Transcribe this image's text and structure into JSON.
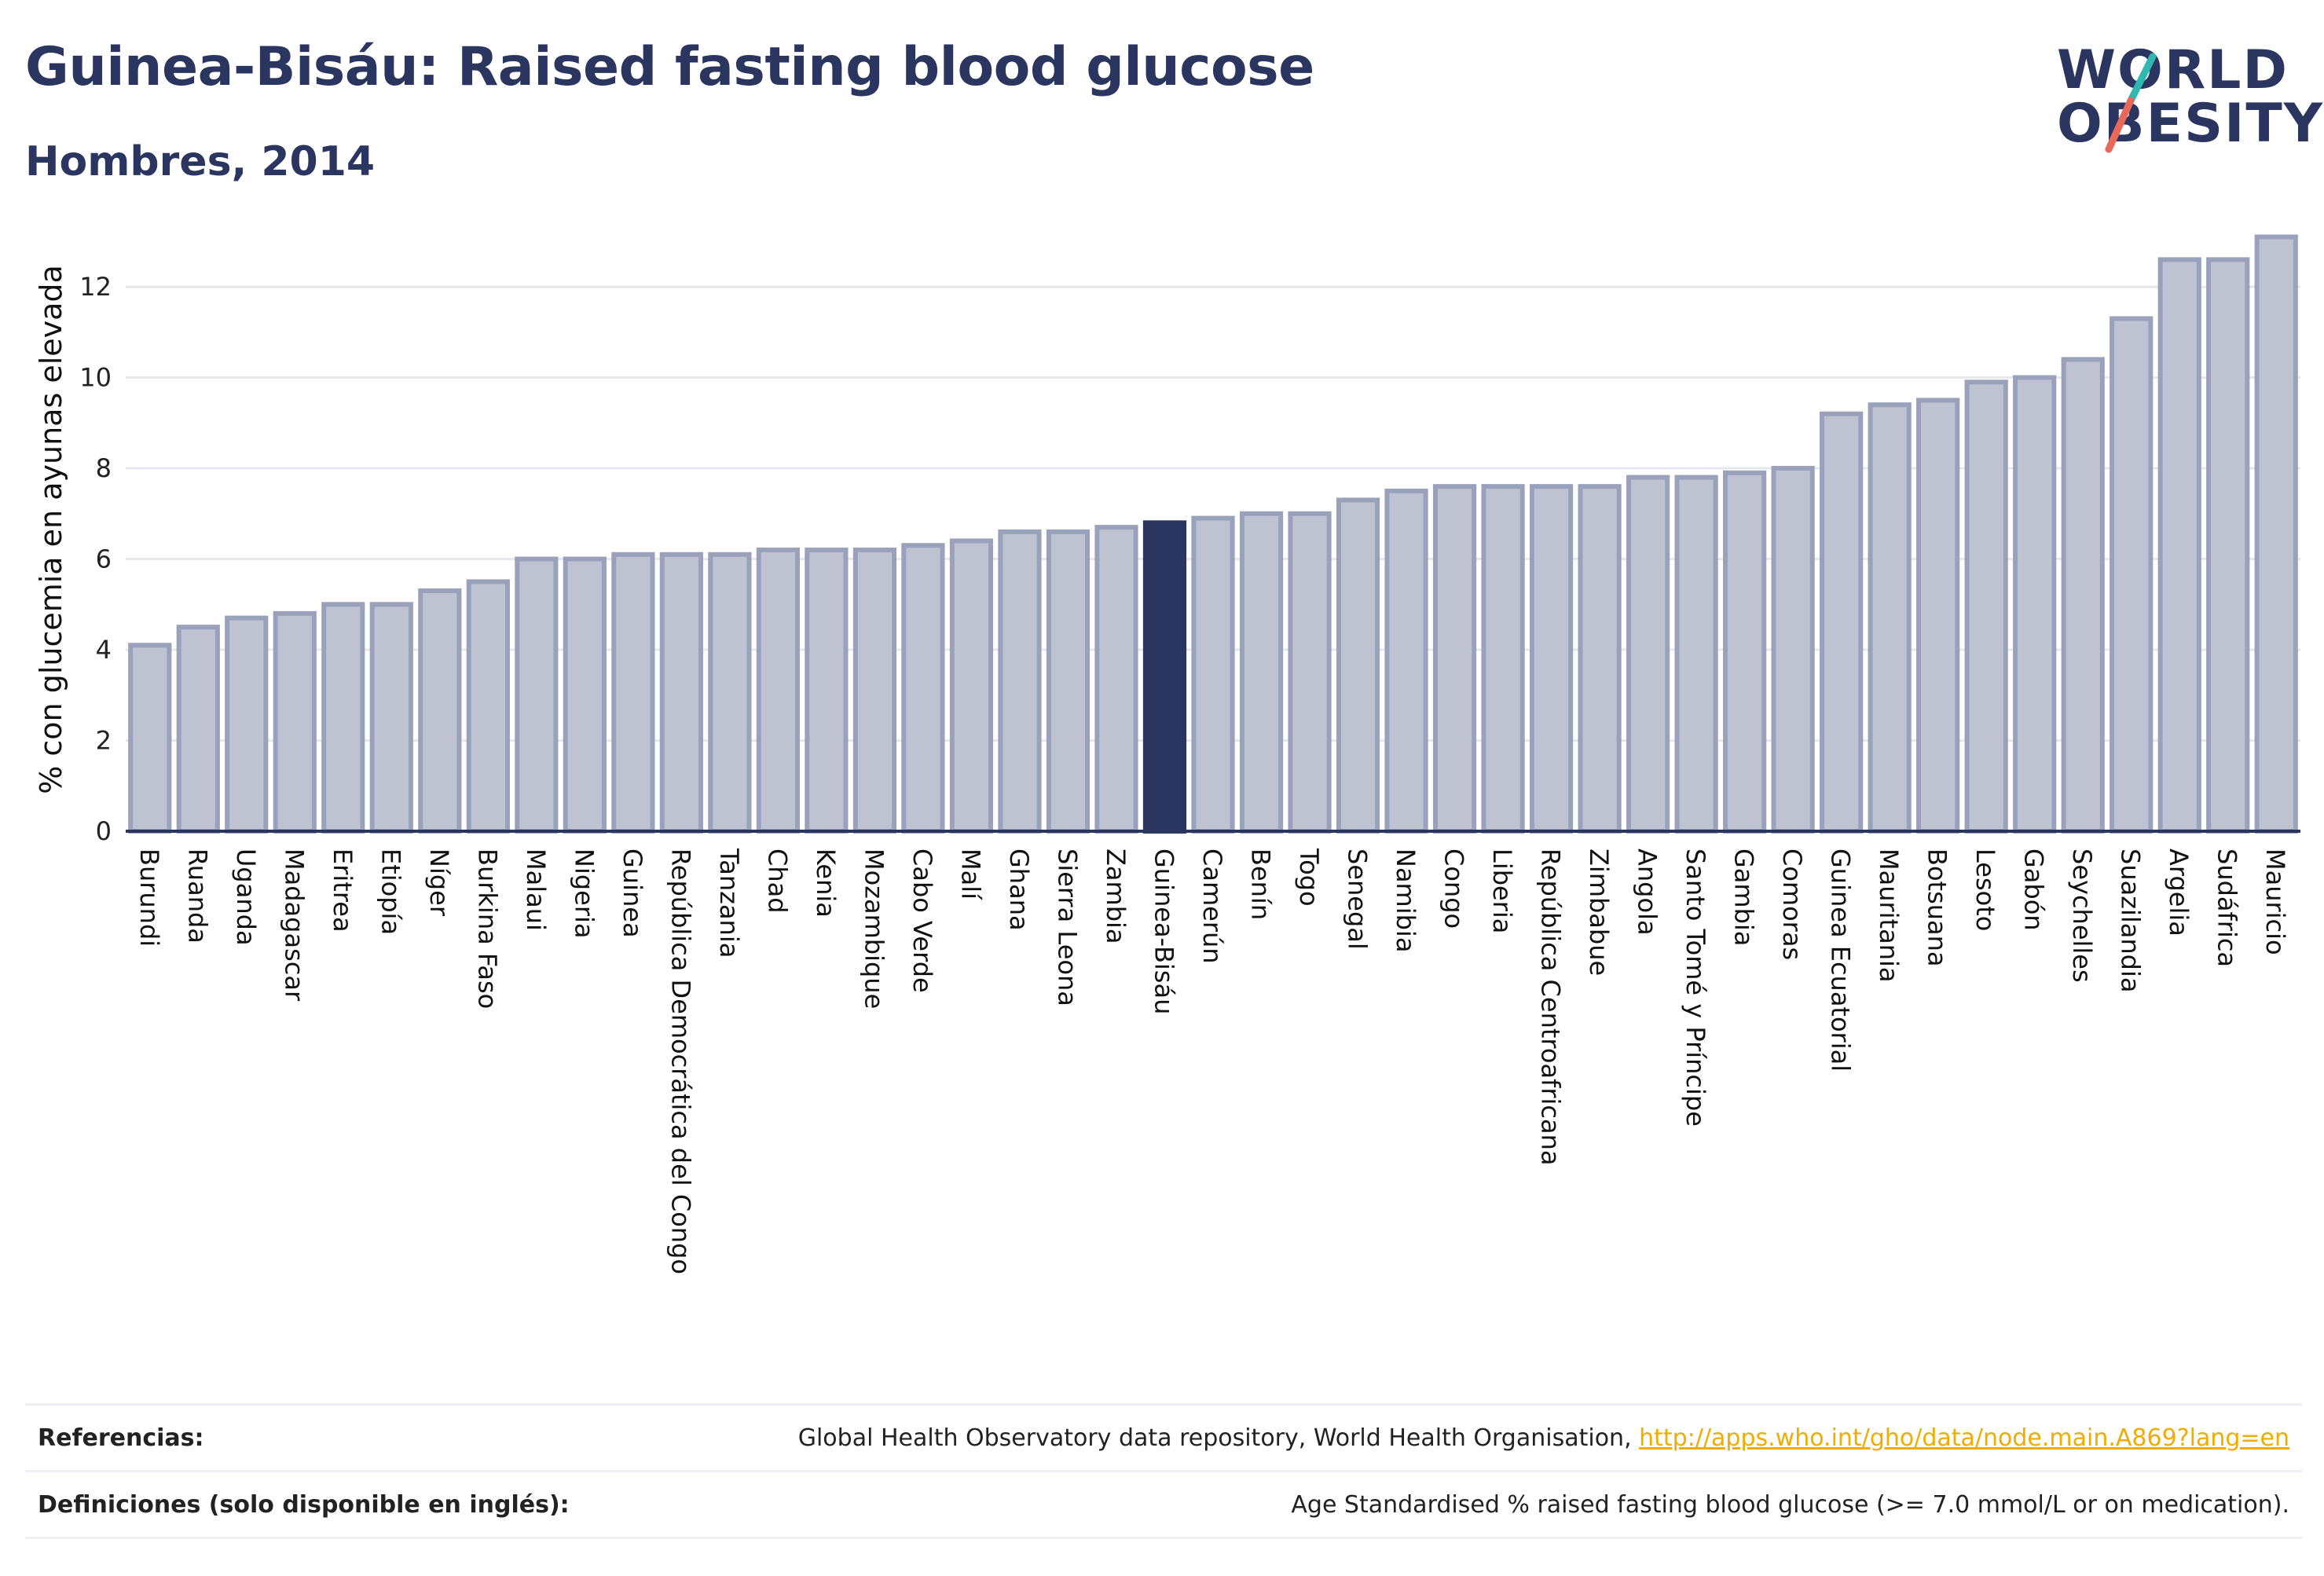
{
  "header": {
    "title": "Guinea-Bisáu: Raised fasting blood glucose",
    "subtitle": "Hombres, 2014"
  },
  "logo": {
    "line1": "WORLD",
    "line2": "OBESITY",
    "slash_color_top": "#2fb7b0",
    "slash_color_bottom": "#e8685a"
  },
  "colors": {
    "bar_fill": "#bfc3d1",
    "bar_stroke": "#9aa1bb",
    "highlight": "#2a3560",
    "axis": "#2a3560",
    "grid": "#e6e8ee",
    "text": "#2a3560"
  },
  "chart_data": {
    "type": "bar",
    "ylabel": "% con glucemia en ayunas elevada",
    "ylim": [
      0,
      13.3
    ],
    "yticks": [
      0,
      2,
      4,
      6,
      8,
      10,
      12
    ],
    "grid": true,
    "highlight_category": "Guinea-Bisáu",
    "categories": [
      "Burundi",
      "Ruanda",
      "Uganda",
      "Madagascar",
      "Eritrea",
      "Etiopía",
      "Níger",
      "Burkina Faso",
      "Malaui",
      "Nigeria",
      "Guinea",
      "República Democrática del Congo",
      "Tanzania",
      "Chad",
      "Kenia",
      "Mozambique",
      "Cabo Verde",
      "Malí",
      "Ghana",
      "Sierra Leona",
      "Zambia",
      "Guinea-Bisáu",
      "Camerún",
      "Benín",
      "Togo",
      "Senegal",
      "Namibia",
      "Congo",
      "Liberia",
      "República Centroafricana",
      "Zimbabue",
      "Angola",
      "Santo Tomé y Príncipe",
      "Gambia",
      "Comoras",
      "Guinea Ecuatorial",
      "Mauritania",
      "Botsuana",
      "Lesoto",
      "Gabón",
      "Seychelles",
      "Suazilandia",
      "Argelia",
      "Sudáfrica",
      "Mauricio"
    ],
    "values": [
      4.1,
      4.5,
      4.7,
      4.8,
      5.0,
      5.0,
      5.3,
      5.5,
      6.0,
      6.0,
      6.1,
      6.1,
      6.1,
      6.2,
      6.2,
      6.2,
      6.3,
      6.4,
      6.6,
      6.6,
      6.7,
      6.8,
      6.9,
      7.0,
      7.0,
      7.3,
      7.5,
      7.6,
      7.6,
      7.6,
      7.6,
      7.8,
      7.8,
      7.9,
      8.0,
      9.2,
      9.4,
      9.5,
      9.9,
      10.0,
      10.4,
      11.3,
      12.6,
      12.6,
      13.1
    ]
  },
  "footer": {
    "references_label": "Referencias:",
    "references_text": "Global Health Observatory data repository, World Health Organisation, ",
    "references_link": "http://apps.who.int/gho/data/node.main.A869?lang=en",
    "definitions_label": "Definiciones (solo disponible en inglés):",
    "definitions_text": "Age Standardised % raised fasting blood glucose (>= 7.0 mmol/L or on medication)."
  }
}
